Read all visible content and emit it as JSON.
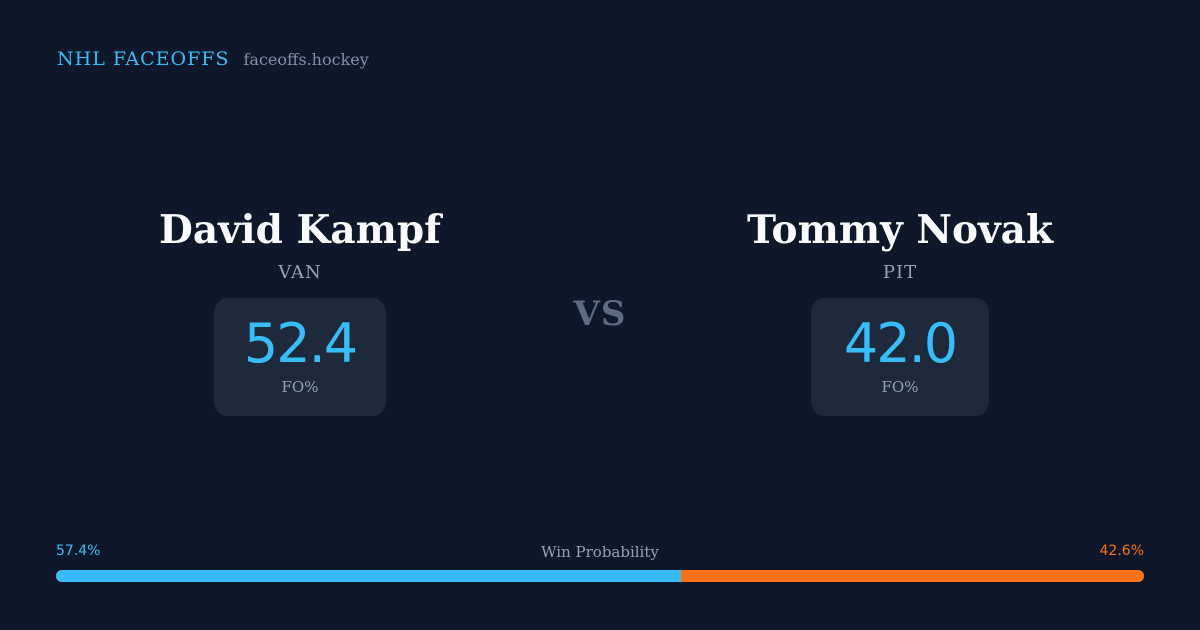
{
  "brand": {
    "name": "NHL FACEOFFS",
    "url": "faceoffs.hockey",
    "accent_color": "#38bdf8"
  },
  "players": [
    {
      "name": "David Kampf",
      "team": "VAN",
      "stat_value": "52.4",
      "stat_label": "FO%",
      "color": "#38bdf8"
    },
    {
      "name": "Tommy Novak",
      "team": "PIT",
      "stat_value": "42.0",
      "stat_label": "FO%",
      "color": "#38bdf8"
    }
  ],
  "versus_label": "VS",
  "win_probability": {
    "title": "Win Probability",
    "left_label": "57.4%",
    "right_label": "42.6%",
    "left_fraction": 0.574,
    "right_fraction": 0.426,
    "left_color": "#38bdf8",
    "right_color": "#f97316"
  },
  "background_color": "#0f172a"
}
